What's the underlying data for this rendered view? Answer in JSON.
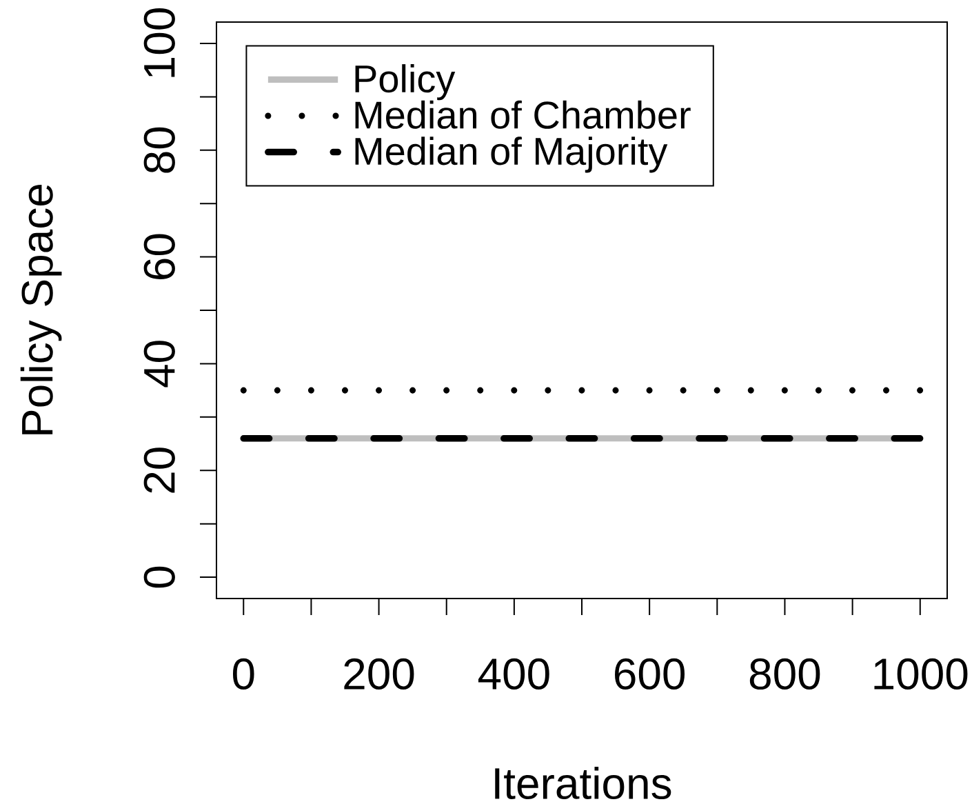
{
  "chart_data": {
    "type": "line",
    "xlabel": "Iterations",
    "ylabel": "Policy Space",
    "x": [
      0,
      1000
    ],
    "series": [
      {
        "name": "Policy",
        "color": "#bebebe",
        "values": [
          26,
          26
        ],
        "line_style": "solid"
      },
      {
        "name": "Median of Chamber",
        "color": "#000000",
        "values": [
          35,
          35
        ],
        "line_style": "dotted"
      },
      {
        "name": "Median of Majority",
        "color": "#000000",
        "values": [
          26,
          26
        ],
        "line_style": "dashed"
      }
    ],
    "xlim": [
      -40,
      1040
    ],
    "ylim": [
      -4,
      104
    ],
    "xticks": [
      0,
      {
        "value": 100,
        "label": null
      },
      200,
      {
        "value": 300,
        "label": null
      },
      400,
      {
        "value": 500,
        "label": null
      },
      600,
      {
        "value": 700,
        "label": null
      },
      800,
      {
        "value": 900,
        "label": null
      },
      1000
    ],
    "yticks": [
      0,
      {
        "value": 10,
        "label": null
      },
      20,
      {
        "value": 30,
        "label": null
      },
      40,
      {
        "value": 50,
        "label": null
      },
      60,
      {
        "value": 70,
        "label": null
      },
      80,
      {
        "value": 90,
        "label": null
      },
      100
    ],
    "grid": false,
    "legend": "top left",
    "marker": "none"
  }
}
